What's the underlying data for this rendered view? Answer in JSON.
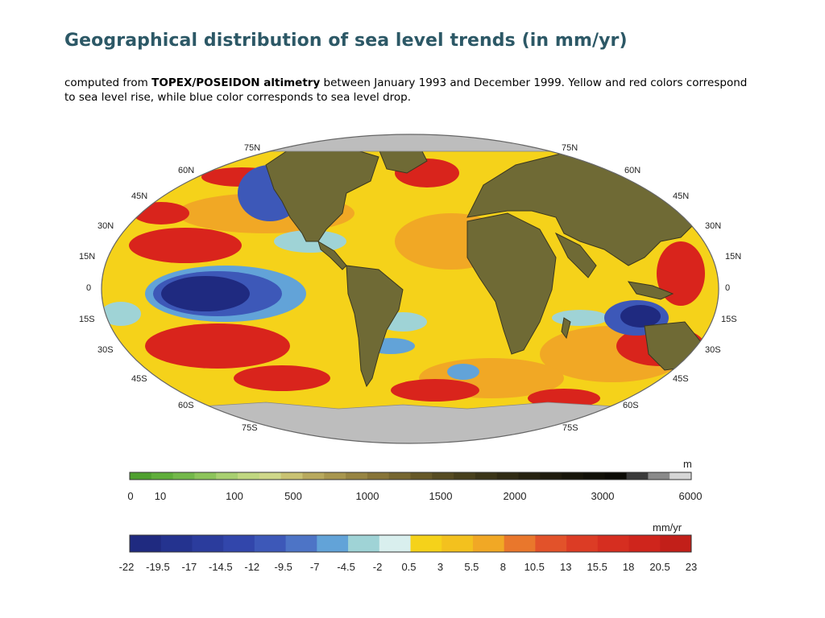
{
  "page": {
    "title": "Geographical distribution of sea level trends (in mm/yr)",
    "caption": {
      "prefix": "computed from ",
      "bold": "TOPEX/POSEIDON altimetry",
      "suffix": " between January 1993 and December 1999. Yellow and red colors correspond to sea level rise, while blue color corresponds to sea level drop."
    }
  },
  "map": {
    "projection": "elliptical world map",
    "latitude_labels": {
      "left": [
        "75N",
        "60N",
        "45N",
        "30N",
        "15N",
        "0",
        "15S",
        "30S",
        "45S",
        "60S",
        "75S"
      ],
      "right": [
        "75N",
        "60N",
        "45N",
        "30N",
        "15N",
        "0",
        "15S",
        "30S",
        "45S",
        "60S",
        "75S"
      ]
    },
    "colors": {
      "ocean_neutral": "#f5d21a",
      "land": "#6f6a35",
      "polar": "#bdbdbd",
      "rise_strong": "#d9241c",
      "drop_strong": "#1b2f8c"
    }
  },
  "legends": {
    "elevation": {
      "unit": "m",
      "ticks": [
        "0",
        "10",
        "100",
        "500",
        "1000",
        "1500",
        "2000",
        "3000",
        "6000"
      ],
      "colors": [
        "#4fa02f",
        "#5fae3a",
        "#73b84a",
        "#8cc45a",
        "#a8d070",
        "#c0d880",
        "#cfd889",
        "#c9c272",
        "#b8a95d",
        "#a8964e",
        "#978442",
        "#877438",
        "#766630",
        "#665828",
        "#564b22",
        "#48401d",
        "#3b3518",
        "#302b14",
        "#262210",
        "#1e1b0d",
        "#17150a",
        "#111008",
        "#0c0b06",
        "#3a3a3a",
        "#8a8a8a",
        "#d6d6d6"
      ]
    },
    "sea_level": {
      "unit": "mm/yr",
      "ticks": [
        "-22",
        "-19.5",
        "-17",
        "-14.5",
        "-12",
        "-9.5",
        "-7",
        "-4.5",
        "-2",
        "0.5",
        "3",
        "5.5",
        "8",
        "10.5",
        "13",
        "15.5",
        "18",
        "20.5",
        "23"
      ],
      "colors": [
        "#1f2a80",
        "#24338f",
        "#2b3c9d",
        "#3246ab",
        "#3d58b8",
        "#4d74c6",
        "#62a3d8",
        "#9fd3d6",
        "#d9efee",
        "#f5d21a",
        "#f3c11e",
        "#f1a825",
        "#e9772c",
        "#e2522a",
        "#dc3c25",
        "#d62e20",
        "#cf251c",
        "#c21f19"
      ]
    }
  }
}
